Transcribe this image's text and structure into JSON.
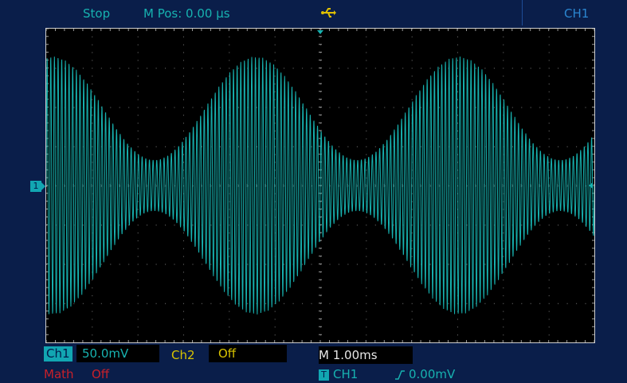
{
  "status_bar": {
    "run_state": "Stop",
    "m_pos": "M Pos: 0.00 μs",
    "active_channel": "CH1",
    "usb_icon": "usb-icon"
  },
  "channels": {
    "ch1": {
      "label": "Ch1",
      "volts_div": "50.0mV",
      "color": "#17b2b0"
    },
    "ch2": {
      "label": "Ch2",
      "state": "Off",
      "color": "#d8c300"
    },
    "math": {
      "label": "Math",
      "state": "Off",
      "color": "#c8202a"
    }
  },
  "timebase": {
    "label": "M",
    "value": "1.00ms"
  },
  "trigger": {
    "icon_letter": "T",
    "source": "CH1",
    "level": "0.00mV",
    "slope_icon": "rising-edge-icon"
  },
  "ch1_marker": "1",
  "waveform": {
    "type": "am-modulated-carrier",
    "color": "#17b2b0",
    "envelope_cycles": 2.7,
    "modulation_depth": 0.67
  }
}
